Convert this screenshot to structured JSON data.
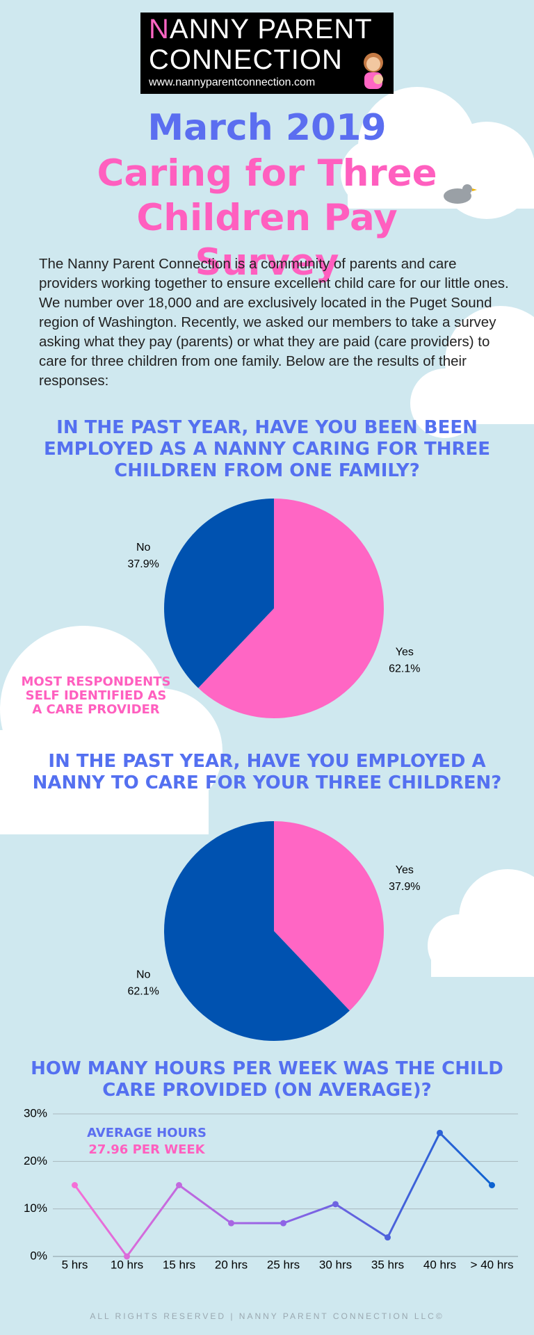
{
  "header": {
    "logo_line1": "NANNY PARENT",
    "logo_line2": "CONNECTION",
    "logo_url": "www.nannyparentconnection.com",
    "date": "March 2019",
    "title": "Caring for Three Children Pay Survey"
  },
  "intro": "The Nanny Parent Connection is a community of parents and care providers working together to ensure excellent child care for our little ones. We number over 18,000 and are exclusively located in the Puget Sound region of Washington. Recently, we asked our members to take a survey asking what they pay (parents) or what they are paid (care providers) to care for three children from one family. Below are the results of their responses:",
  "chart_data": [
    {
      "type": "pie",
      "title": "IN THE PAST YEAR, HAVE YOU BEEN BEEN EMPLOYED AS A NANNY CARING FOR THREE CHILDREN FROM ONE FAMILY?",
      "categories": [
        "Yes",
        "No"
      ],
      "values": [
        62.1,
        37.9
      ],
      "value_labels": [
        "62.1%",
        "37.9%"
      ],
      "colors": [
        "#ff66c4",
        "#0052b0"
      ],
      "annotation": "MOST RESPONDENTS SELF IDENTIFIED AS A CARE PROVIDER"
    },
    {
      "type": "pie",
      "title": "IN THE PAST YEAR, HAVE YOU EMPLOYED A NANNY TO CARE FOR YOUR THREE CHILDREN?",
      "categories": [
        "Yes",
        "No"
      ],
      "values": [
        37.9,
        62.1
      ],
      "value_labels": [
        "37.9%",
        "62.1%"
      ],
      "colors": [
        "#ff66c4",
        "#0052b0"
      ]
    },
    {
      "type": "line",
      "title": "HOW MANY HOURS PER WEEK WAS THE CHILD CARE PROVIDED (ON AVERAGE)?",
      "categories": [
        "5 hrs",
        "10 hrs",
        "15 hrs",
        "20 hrs",
        "25 hrs",
        "30 hrs",
        "35 hrs",
        "40 hrs",
        "> 40 hrs"
      ],
      "values": [
        15,
        0,
        15,
        7,
        7,
        11,
        4,
        26,
        15
      ],
      "ylim": [
        0,
        30
      ],
      "yticks": [
        {
          "value": 0,
          "label": "0%"
        },
        {
          "value": 10,
          "label": "10%"
        },
        {
          "value": 20,
          "label": "20%"
        },
        {
          "value": 30,
          "label": "30%"
        }
      ],
      "grid": true,
      "colors": [
        "#f56fd6",
        "#8e63e6",
        "#0d62d0"
      ],
      "annotation_line1": "AVERAGE HOURS",
      "annotation_line2": "27.96 PER WEEK"
    }
  ],
  "footer": "ALL RIGHTS RESERVED | NANNY PARENT CONNECTION LLC©"
}
